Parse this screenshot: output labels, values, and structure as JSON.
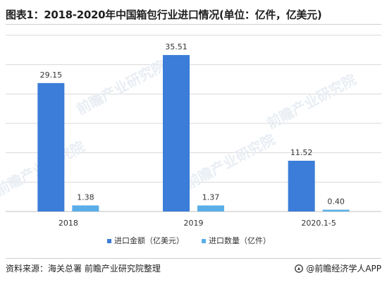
{
  "title": "图表1：2018-2020年中国箱包行业进口情况(单位：亿件，亿美元)",
  "footer": {
    "source": "资料来源：海关总署 前瞻产业研究院整理",
    "brand": "@前瞻经济学人APP"
  },
  "watermark": {
    "text": "前瞻产业研究院"
  },
  "colors": {
    "series_value": "#3b7dd8",
    "series_quantity": "#5aaee8",
    "grid": "#d9d9d9",
    "axis": "#bfbfbf"
  },
  "chart_data": {
    "type": "bar",
    "title": "图表1：2018-2020年中国箱包行业进口情况(单位：亿件，亿美元)",
    "categories": [
      "2018",
      "2019",
      "2020.1-5"
    ],
    "series": [
      {
        "name": "进口金额（亿美元）",
        "values": [
          29.15,
          35.51,
          11.52
        ],
        "labels": [
          "29.15",
          "35.51",
          "11.52"
        ]
      },
      {
        "name": "进口数量（亿件）",
        "values": [
          1.38,
          1.37,
          0.4
        ],
        "labels": [
          "1.38",
          "1.37",
          "0.40"
        ]
      }
    ],
    "ylim": [
      0,
      40
    ],
    "grid": true,
    "y_tick_labels_visible": false,
    "legend_position": "bottom"
  }
}
